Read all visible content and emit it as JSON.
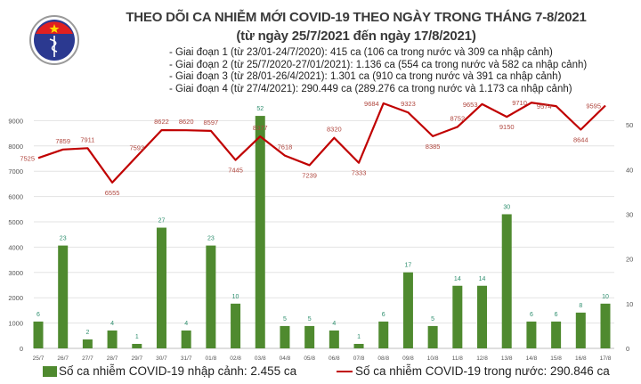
{
  "header": {
    "title": "THEO DÕI CA NHIỄM MỚI COVID-19 THEO NGÀY TRONG THÁNG 7-8/2021",
    "subtitle": "(từ ngày 25/7/2021 đến ngày 17/8/2021)",
    "phases": [
      "- Giai đoạn 1 (từ 23/01-24/7/2020): 415 ca (106 ca trong nước và 309 ca nhập cảnh)",
      "- Giai đoạn 2 (từ 25/7/2020-27/01/2021): 1.136 ca (554 ca trong nước và 582 ca nhập cảnh)",
      "- Giai đoạn 3 (từ 28/01-26/4/2021): 1.301 ca (910 ca trong nước và 391 ca nhập cảnh)",
      "- Giai đoạn 4 (từ 27/4/2021): 290.449 ca (289.276 ca trong nước và 1.173 ca nhập cảnh)"
    ],
    "logo_text": "BỘ Y TẾ · MINISTRY OF HEALTH"
  },
  "chart_data": {
    "type": "bar+line",
    "categories": [
      "25/7",
      "26/7",
      "27/7",
      "28/7",
      "29/7",
      "30/7",
      "31/7",
      "01/8",
      "02/8",
      "03/8",
      "04/8",
      "05/8",
      "06/8",
      "07/8",
      "08/8",
      "09/8",
      "10/8",
      "11/8",
      "12/8",
      "13/8",
      "14/8",
      "15/8",
      "16/8",
      "17/8"
    ],
    "series": [
      {
        "name": "Số ca nhiễm COVID-19 nhập cảnh: 2.455 ca",
        "type": "bar",
        "axis": "right",
        "color": "#4f8a2f",
        "values": [
          6,
          23,
          2,
          4,
          1,
          27,
          4,
          23,
          10,
          52,
          5,
          5,
          4,
          1,
          6,
          17,
          5,
          14,
          14,
          30,
          6,
          6,
          8,
          10
        ]
      },
      {
        "name": "Số ca nhiễm COVID-19 trong nước: 290.846 ca",
        "type": "line",
        "axis": "left",
        "color": "#c00000",
        "values": [
          7525,
          7859,
          7911,
          6555,
          7593,
          8622,
          8620,
          8597,
          7445,
          8377,
          7618,
          7239,
          8320,
          7333,
          9684,
          9323,
          8385,
          8752,
          9653,
          9150,
          9710,
          9574,
          8644,
          9595
        ]
      }
    ],
    "y_left": {
      "ticks": [
        0,
        1000,
        2000,
        3000,
        4000,
        5000,
        6000,
        7000,
        8000,
        9000
      ],
      "range": [
        0,
        10000
      ]
    },
    "y_right": {
      "ticks": [
        0,
        10,
        20,
        30,
        40,
        50
      ],
      "range": [
        0,
        56.6
      ]
    },
    "grid": true,
    "legend_position": "bottom",
    "bar_label_color": "#2f8f6f",
    "line_label_color": "#b0473f"
  }
}
